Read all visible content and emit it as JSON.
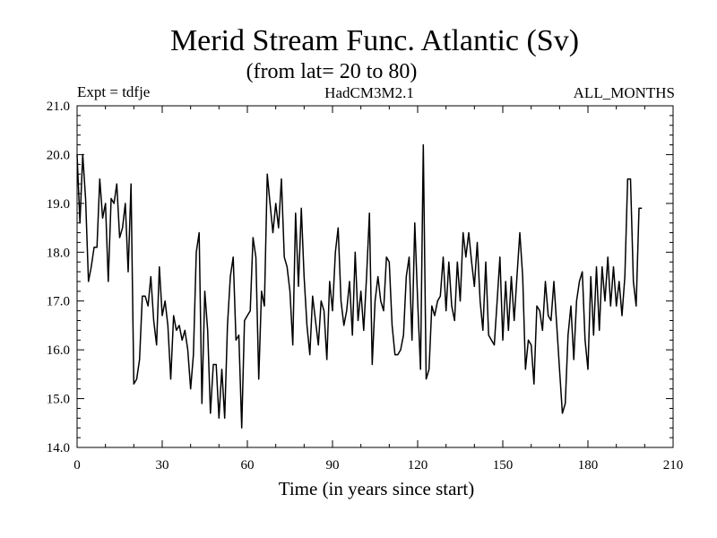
{
  "chart_data": {
    "type": "line",
    "title": "Merid Stream Func. Atlantic (Sv)",
    "subtitle": "(from lat= 20 to 80)",
    "expt_label": "Expt = tdfje",
    "model_label": "HadCM3M2.1",
    "period_label": "ALL_MONTHS",
    "xlabel": "Time (in years since start)",
    "ylabel": "",
    "xlim": [
      0,
      210
    ],
    "ylim": [
      14.0,
      21.0
    ],
    "xticks": [
      0,
      30,
      60,
      90,
      120,
      150,
      180,
      210
    ],
    "xtick_labels": [
      "0",
      "30",
      "60",
      "90",
      "120",
      "150",
      "180",
      "210"
    ],
    "yticks": [
      14.0,
      15.0,
      16.0,
      17.0,
      18.0,
      19.0,
      20.0,
      21.0
    ],
    "ytick_labels": [
      "14.0",
      "15.0",
      "16.0",
      "17.0",
      "18.0",
      "19.0",
      "20.0",
      "21.0"
    ],
    "series": [
      {
        "name": "Merid Stream Func. Atlantic",
        "color": "#000000",
        "x": [
          0,
          1,
          2,
          3,
          4,
          5,
          6,
          7,
          8,
          9,
          10,
          11,
          12,
          13,
          14,
          15,
          16,
          17,
          18,
          19,
          20,
          21,
          22,
          23,
          24,
          25,
          26,
          27,
          28,
          29,
          30,
          31,
          32,
          33,
          34,
          35,
          36,
          37,
          38,
          39,
          40,
          41,
          42,
          43,
          44,
          45,
          46,
          47,
          48,
          49,
          50,
          51,
          52,
          53,
          54,
          55,
          56,
          57,
          58,
          59,
          60,
          61,
          62,
          63,
          64,
          65,
          66,
          67,
          68,
          69,
          70,
          71,
          72,
          73,
          74,
          75,
          76,
          77,
          78,
          79,
          80,
          81,
          82,
          83,
          84,
          85,
          86,
          87,
          88,
          89,
          90,
          91,
          92,
          93,
          94,
          95,
          96,
          97,
          98,
          99,
          100,
          101,
          102,
          103,
          104,
          105,
          106,
          107,
          108,
          109,
          110,
          111,
          112,
          113,
          114,
          115,
          116,
          117,
          118,
          119,
          120,
          121,
          122,
          123,
          124,
          125,
          126,
          127,
          128,
          129,
          130,
          131,
          132,
          133,
          134,
          135,
          136,
          137,
          138,
          139,
          140,
          141,
          142,
          143,
          144,
          145,
          146,
          147,
          148,
          149,
          150,
          151,
          152,
          153,
          154,
          155,
          156,
          157,
          158,
          159,
          160,
          161,
          162,
          163,
          164,
          165,
          166,
          167,
          168,
          169,
          170,
          171,
          172,
          173,
          174,
          175,
          176,
          177,
          178,
          179,
          180,
          181,
          182,
          183,
          184,
          185,
          186,
          187,
          188,
          189,
          190,
          191,
          192,
          193,
          194,
          195,
          196,
          197,
          198,
          199
        ],
        "y": [
          20.0,
          18.6,
          20.0,
          19.1,
          17.4,
          17.7,
          18.1,
          18.1,
          19.5,
          18.7,
          19.0,
          17.4,
          19.1,
          19.0,
          19.4,
          18.3,
          18.5,
          19.0,
          17.6,
          19.4,
          15.3,
          15.4,
          15.8,
          17.1,
          17.1,
          16.9,
          17.5,
          16.6,
          16.1,
          17.7,
          16.7,
          17.0,
          16.5,
          15.4,
          16.7,
          16.4,
          16.5,
          16.2,
          16.4,
          16.0,
          15.2,
          15.9,
          18.0,
          18.4,
          14.9,
          17.2,
          16.4,
          14.7,
          15.7,
          15.7,
          14.6,
          15.6,
          14.6,
          16.5,
          17.5,
          17.9,
          16.2,
          16.3,
          14.4,
          16.6,
          16.7,
          16.8,
          18.3,
          17.9,
          15.4,
          17.2,
          16.9,
          19.6,
          19.0,
          18.4,
          19.0,
          18.5,
          19.5,
          17.9,
          17.7,
          17.2,
          16.1,
          18.8,
          17.3,
          18.9,
          17.5,
          16.5,
          15.9,
          17.1,
          16.6,
          16.1,
          17.0,
          16.8,
          15.8,
          17.4,
          16.8,
          18.0,
          18.5,
          17.0,
          16.5,
          16.8,
          17.4,
          16.3,
          18.0,
          16.6,
          17.2,
          16.4,
          17.5,
          18.8,
          15.7,
          17.0,
          17.5,
          17.0,
          16.8,
          17.9,
          17.8,
          16.5,
          15.9,
          15.9,
          16.0,
          16.3,
          17.5,
          17.9,
          16.2,
          18.6,
          17.0,
          15.6,
          20.2,
          15.4,
          15.6,
          16.9,
          16.7,
          17.0,
          17.1,
          17.9,
          16.8,
          17.8,
          16.9,
          16.6,
          17.8,
          17.0,
          18.4,
          17.9,
          18.4,
          17.8,
          17.3,
          18.2,
          17.0,
          16.4,
          17.8,
          16.3,
          16.2,
          16.1,
          17.0,
          17.9,
          16.2,
          17.4,
          16.4,
          17.5,
          16.6,
          17.5,
          18.4,
          17.5,
          15.6,
          16.2,
          16.1,
          15.3,
          16.9,
          16.8,
          16.4,
          17.4,
          16.7,
          16.6,
          17.4,
          16.5,
          15.6,
          14.7,
          14.9,
          16.3,
          16.9,
          15.8,
          17.0,
          17.4,
          17.6,
          16.2,
          15.6,
          17.5,
          16.3,
          17.7,
          16.4,
          17.7,
          17.0,
          17.9,
          16.9,
          17.7,
          16.9,
          17.4,
          16.7,
          17.5,
          19.5,
          19.5,
          17.4,
          16.9,
          18.9,
          18.9
        ]
      }
    ]
  }
}
